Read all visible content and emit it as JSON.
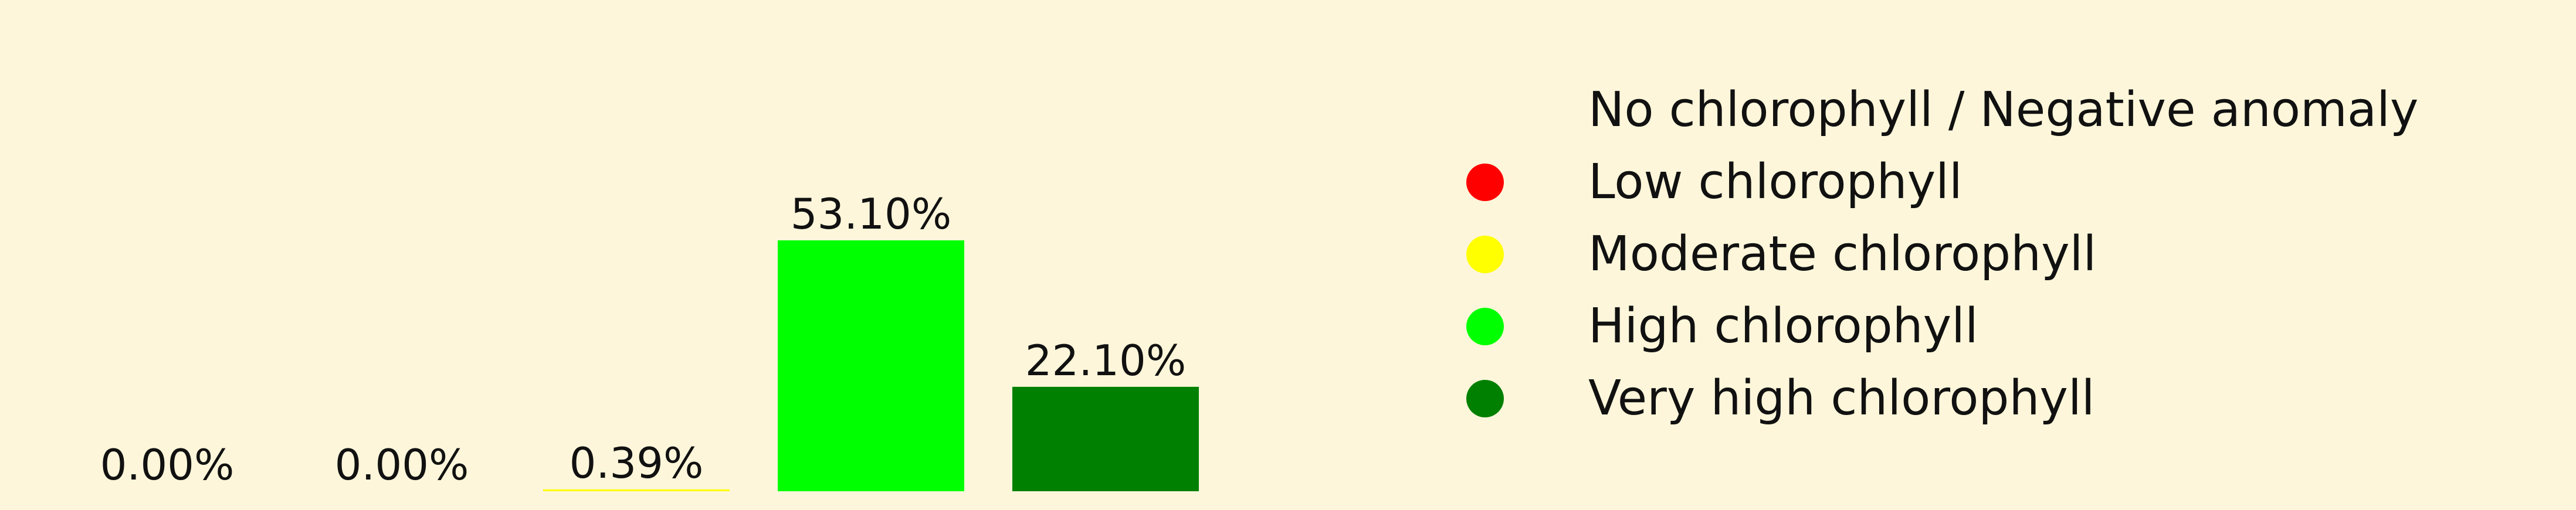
{
  "chart_data": {
    "type": "bar",
    "categories": [
      "No chlorophyll / Negative anomaly",
      "Low chlorophyll",
      "Moderate chlorophyll",
      "High chlorophyll",
      "Very high chlorophyll"
    ],
    "values": [
      0.0,
      0.0,
      0.39,
      53.1,
      22.1
    ],
    "value_labels": [
      "0.00%",
      "0.00%",
      "0.39%",
      "53.10%",
      "22.10%"
    ],
    "colors": [
      "#fdf6da",
      "#ff0000",
      "#ffff00",
      "#00ff00",
      "#008000"
    ],
    "ylim": [
      0,
      60
    ],
    "grid": false,
    "legend_position": "right"
  }
}
